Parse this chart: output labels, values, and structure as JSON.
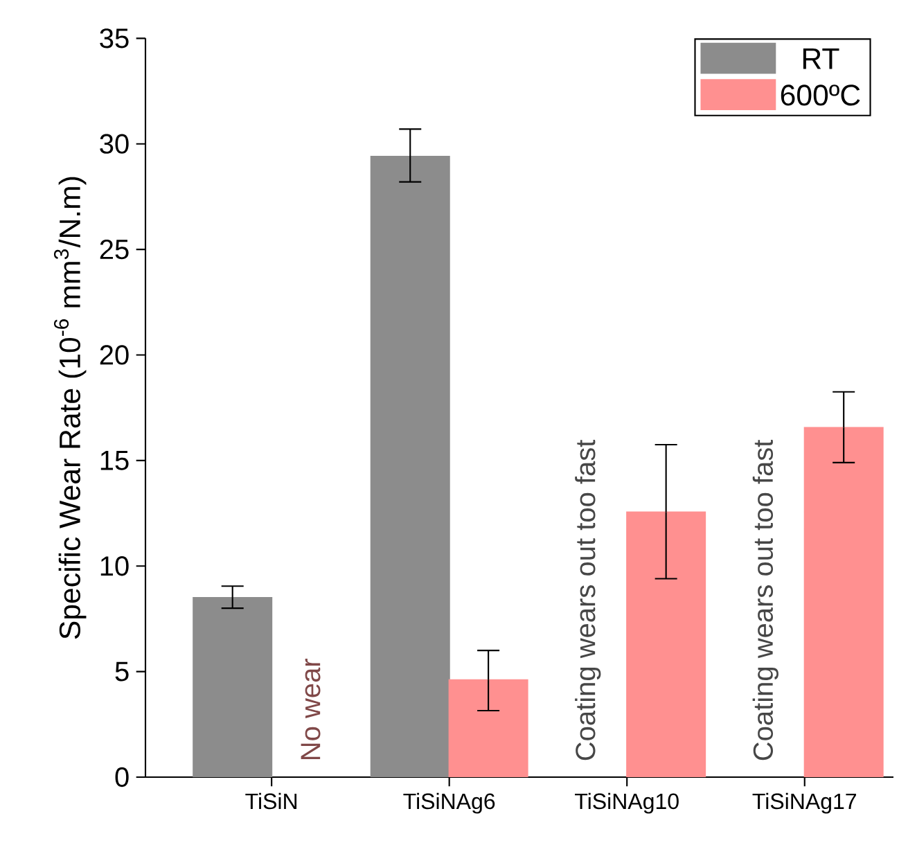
{
  "chart_data": {
    "type": "bar",
    "ylabel": "Specific Wear Rate (10$^{-6}$ mm$^{3}$/N.m)",
    "categories": [
      "TiSiN",
      "TiSiNAg6",
      "TiSiNAg10",
      "TiSiNAg17"
    ],
    "series": [
      {
        "name": "RT",
        "color": "#8c8c8c",
        "values": [
          8.5,
          29.4,
          null,
          null
        ],
        "errors": [
          [
            8.0,
            9.05
          ],
          [
            28.2,
            30.7
          ],
          null,
          null
        ]
      },
      {
        "name": "600ºC",
        "color": "#ff9090",
        "values": [
          null,
          4.6,
          12.55,
          16.55
        ],
        "errors": [
          null,
          [
            3.15,
            6.0
          ],
          [
            9.4,
            15.75
          ],
          [
            14.9,
            18.25
          ]
        ]
      }
    ],
    "ylim": [
      0,
      35
    ],
    "yticks": [
      0,
      5,
      10,
      15,
      20,
      25,
      30,
      35
    ],
    "grid": false,
    "legend": "top right",
    "annotations": [
      "No wear",
      "Coating wears out too fast",
      "Coating wears out too fast"
    ]
  }
}
